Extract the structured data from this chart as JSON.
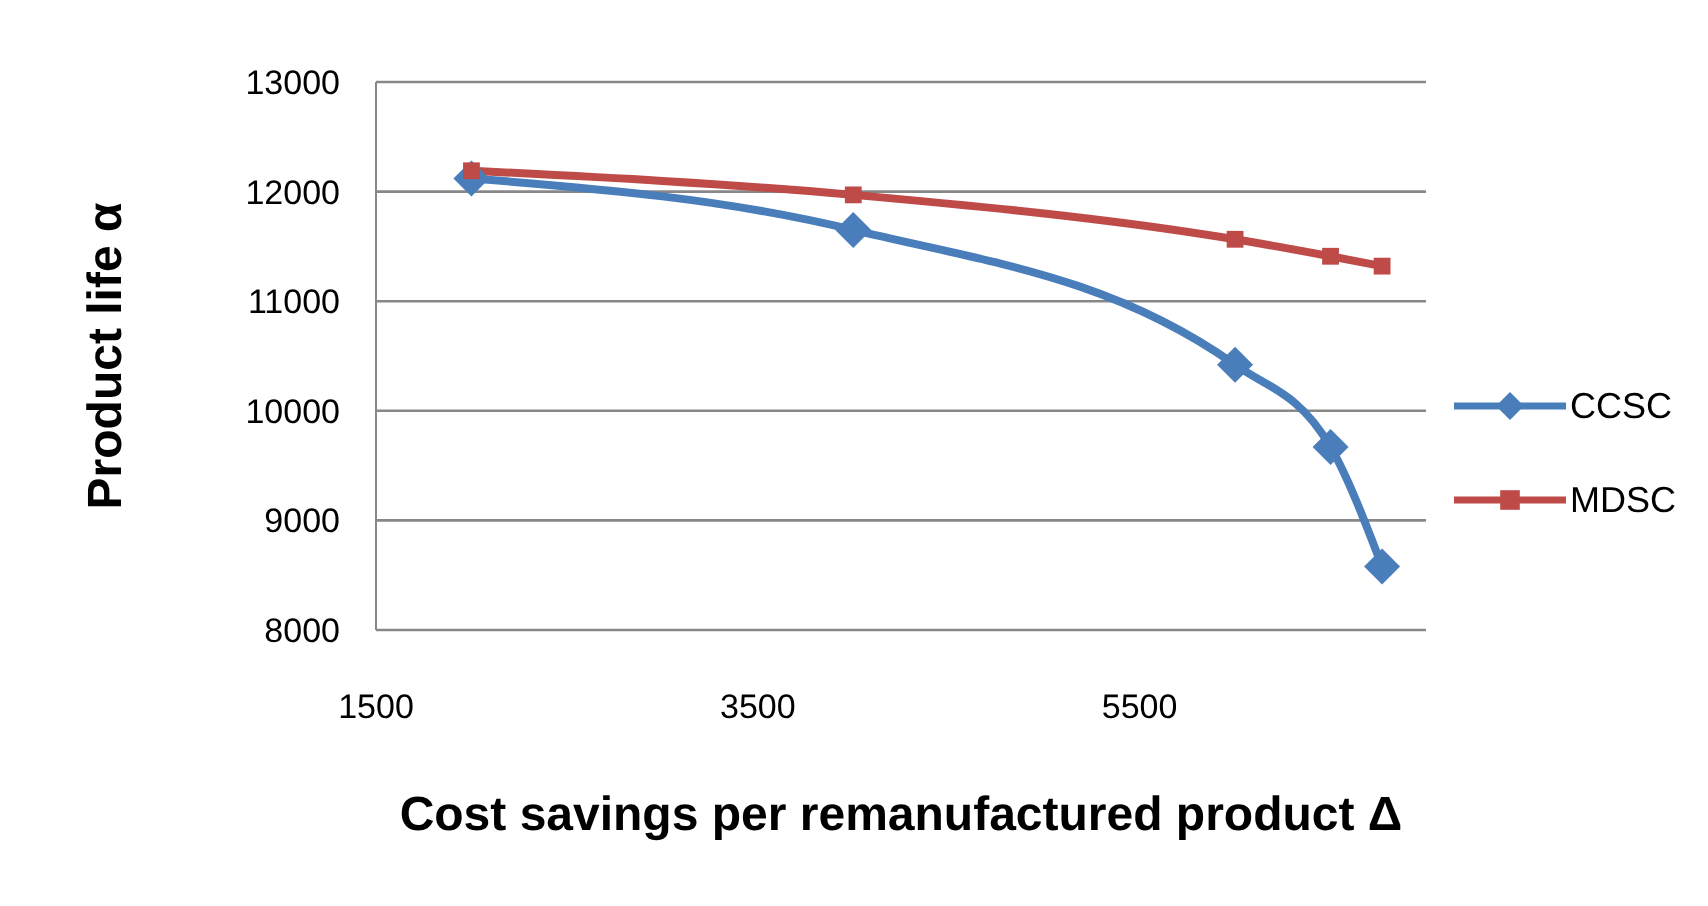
{
  "chart_data": {
    "type": "line",
    "xlabel": "Cost savings per remanufactured product Δ",
    "ylabel": "Product life α",
    "xlim": [
      1500,
      7000
    ],
    "xticks": [
      1500,
      3500,
      5500
    ],
    "ylim": [
      8000,
      13000
    ],
    "yticks": [
      8000,
      9000,
      10000,
      11000,
      12000,
      13000
    ],
    "grid": "y",
    "legend": "right",
    "series": [
      {
        "name": "CCSC",
        "color": "#4a7ebb",
        "marker": "diamond",
        "x": [
          2000,
          4000,
          6000,
          6500,
          6770
        ],
        "values": [
          12120,
          11650,
          10420,
          9670,
          8580
        ]
      },
      {
        "name": "MDSC",
        "color": "#be4b48",
        "marker": "square",
        "x": [
          2000,
          4000,
          6000,
          6500,
          6770
        ],
        "values": [
          12190,
          11970,
          11565,
          11410,
          11320
        ]
      }
    ]
  }
}
